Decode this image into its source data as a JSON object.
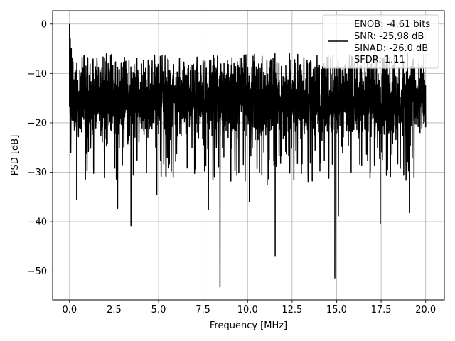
{
  "chart_data": {
    "type": "line",
    "title": "",
    "xlabel": "Frequency [MHz]",
    "ylabel": "PSD [dB]",
    "xlim": [
      -0.95,
      21.05
    ],
    "ylim": [
      -55.8,
      2.7
    ],
    "xticks": [
      0.0,
      2.5,
      5.0,
      7.5,
      10.0,
      12.5,
      15.0,
      17.5,
      20.0
    ],
    "xtick_labels": [
      "0.0",
      "2.5",
      "5.0",
      "7.5",
      "10.0",
      "12.5",
      "15.0",
      "17.5",
      "20.0"
    ],
    "yticks": [
      0,
      -10,
      -20,
      -30,
      -40,
      -50
    ],
    "ytick_labels": [
      "0",
      "−10",
      "−20",
      "−30",
      "−40",
      "−50"
    ],
    "grid": true,
    "legend_position": "top-right",
    "legend_lines": [
      "ENOB: -4.61 bits",
      "SNR: -25,98 dB",
      "SINAD: -26.0 dB",
      "SFDR: 1.11"
    ],
    "series": [
      {
        "name": "ENOB: -4.61 bits",
        "color": "#000000",
        "x_range": [
          0.0,
          20.0
        ],
        "typical_range": [
          -24,
          -7
        ],
        "peak": {
          "x": 0.0,
          "y": 0.0
        },
        "dips": [
          {
            "x": 0.4,
            "y": -35.5
          },
          {
            "x": 2.7,
            "y": -37.3
          },
          {
            "x": 3.45,
            "y": -40.8
          },
          {
            "x": 4.9,
            "y": -34.5
          },
          {
            "x": 7.8,
            "y": -37.5
          },
          {
            "x": 8.45,
            "y": -53.2
          },
          {
            "x": 10.1,
            "y": -36.0
          },
          {
            "x": 11.1,
            "y": -32.5
          },
          {
            "x": 11.55,
            "y": -47.0
          },
          {
            "x": 14.9,
            "y": -51.5
          },
          {
            "x": 15.1,
            "y": -38.8
          },
          {
            "x": 17.45,
            "y": -40.5
          },
          {
            "x": 19.1,
            "y": -38.2
          }
        ]
      }
    ]
  }
}
